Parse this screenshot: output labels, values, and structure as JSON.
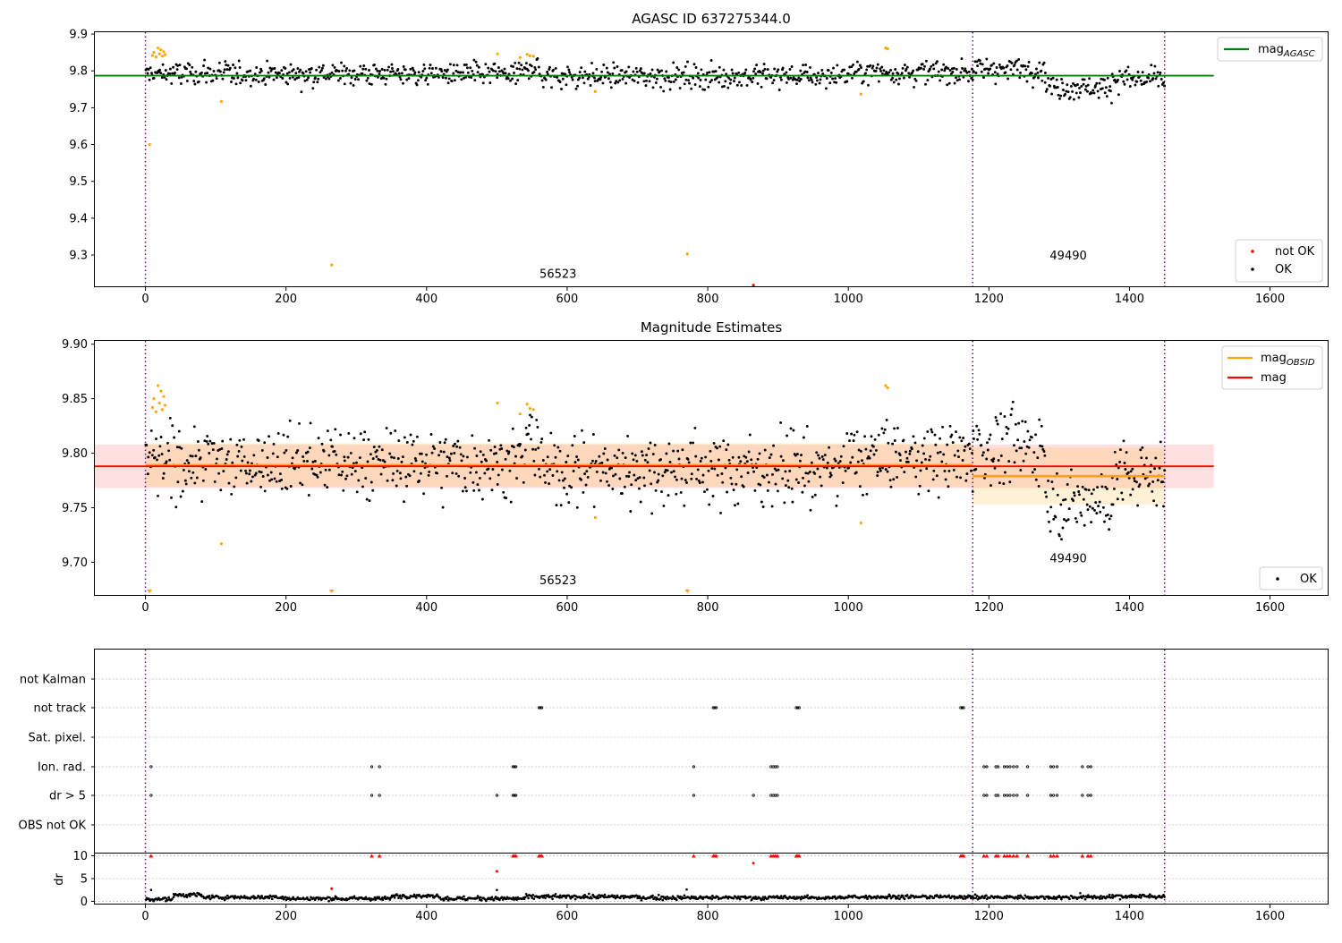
{
  "chart_data": [
    {
      "type": "scatter",
      "title": "AGASC ID 637275344.0",
      "xlim": [
        -72,
        1682
      ],
      "ylim": [
        9.215,
        9.905
      ],
      "xticks": [
        0,
        200,
        400,
        600,
        800,
        1000,
        1200,
        1400,
        1600
      ],
      "yticks": [
        9.3,
        9.4,
        9.5,
        9.6,
        9.7,
        9.8,
        9.9
      ],
      "ytick_labels": [
        "9.3",
        "9.4",
        "9.5",
        "9.6",
        "9.7",
        "9.8",
        "9.9"
      ],
      "obs_boundaries": [
        0,
        1177,
        1450
      ],
      "obs_labels": [
        {
          "text": "56523",
          "x": 587,
          "y": 9.238
        },
        {
          "text": "49490",
          "x": 1313,
          "y": 9.288
        }
      ],
      "mag_agasc": {
        "value": 9.787,
        "x": [
          0,
          1520
        ],
        "color": "#008000"
      },
      "ok_trend": [
        {
          "x0": 0,
          "x1": 540,
          "mean": 9.792
        },
        {
          "x0": 540,
          "x1": 560,
          "mean": 9.812
        },
        {
          "x0": 560,
          "x1": 1000,
          "mean": 9.786
        },
        {
          "x0": 1000,
          "x1": 1177,
          "mean": 9.797
        },
        {
          "x0": 1177,
          "x1": 1280,
          "mean": 9.806
        },
        {
          "x0": 1280,
          "x1": 1375,
          "mean": 9.756
        },
        {
          "x0": 1375,
          "x1": 1450,
          "mean": 9.778
        }
      ],
      "ok_scatter_sd": 0.016,
      "flagged_points": [
        [
          6,
          9.6
        ],
        [
          108,
          9.717
        ],
        [
          265,
          9.273
        ],
        [
          771,
          9.303
        ],
        [
          1018,
          9.737
        ],
        [
          640,
          9.744
        ],
        [
          10,
          9.842
        ],
        [
          12,
          9.85
        ],
        [
          15,
          9.838
        ],
        [
          18,
          9.862
        ],
        [
          20,
          9.846
        ],
        [
          22,
          9.857
        ],
        [
          24,
          9.84
        ],
        [
          26,
          9.852
        ],
        [
          28,
          9.844
        ],
        [
          501,
          9.846
        ],
        [
          533,
          9.836
        ],
        [
          543,
          9.845
        ],
        [
          547,
          9.841
        ],
        [
          552,
          9.84
        ],
        [
          1053,
          9.862
        ],
        [
          1056,
          9.86
        ]
      ],
      "not_ok_points": [
        [
          865,
          9.218
        ]
      ],
      "legend_top": [
        {
          "label": "mag",
          "sub": "AGASC",
          "color": "#008000"
        }
      ],
      "legend_bottom": [
        {
          "label": "not OK",
          "color": "#ff0000"
        },
        {
          "label": "OK",
          "color": "#000000"
        }
      ],
      "colors": {
        "ok": "#000000",
        "flagged": "#ffa500",
        "not_ok": "#ff0000",
        "boundary": "#800080"
      }
    },
    {
      "type": "scatter",
      "title": "Magnitude Estimates",
      "xlim": [
        -72,
        1682
      ],
      "ylim": [
        9.67,
        9.903
      ],
      "xticks": [
        0,
        200,
        400,
        600,
        800,
        1000,
        1200,
        1400,
        1600
      ],
      "yticks": [
        9.7,
        9.75,
        9.8,
        9.85,
        9.9
      ],
      "ytick_labels": [
        "9.70",
        "9.75",
        "9.80",
        "9.85",
        "9.90"
      ],
      "obs_boundaries": [
        0,
        1177,
        1450
      ],
      "obs_labels": [
        {
          "text": "56523",
          "x": 587,
          "y": 9.68
        },
        {
          "text": "49490",
          "x": 1313,
          "y": 9.7
        }
      ],
      "mag": {
        "value": 9.788,
        "band": [
          9.768,
          9.808
        ],
        "x": [
          -72,
          1520
        ],
        "color": "#ff0000"
      },
      "mag_obsid": [
        {
          "x0": 0,
          "x1": 1177,
          "value": 9.789,
          "band": [
            9.769,
            9.809
          ]
        },
        {
          "x0": 1177,
          "x1": 1450,
          "value": 9.779,
          "band": [
            9.753,
            9.805
          ]
        }
      ],
      "ok_trend": [
        {
          "x0": 0,
          "x1": 540,
          "mean": 9.792
        },
        {
          "x0": 540,
          "x1": 560,
          "mean": 9.812
        },
        {
          "x0": 560,
          "x1": 1000,
          "mean": 9.786
        },
        {
          "x0": 1000,
          "x1": 1177,
          "mean": 9.797
        },
        {
          "x0": 1177,
          "x1": 1280,
          "mean": 9.806
        },
        {
          "x0": 1280,
          "x1": 1375,
          "mean": 9.756
        },
        {
          "x0": 1375,
          "x1": 1450,
          "mean": 9.778
        }
      ],
      "ok_scatter_sd": 0.016,
      "flagged_points": [
        [
          108,
          9.717
        ],
        [
          1018,
          9.736
        ],
        [
          640,
          9.741
        ],
        [
          10,
          9.842
        ],
        [
          12,
          9.85
        ],
        [
          15,
          9.838
        ],
        [
          18,
          9.862
        ],
        [
          20,
          9.846
        ],
        [
          22,
          9.857
        ],
        [
          24,
          9.84
        ],
        [
          26,
          9.852
        ],
        [
          28,
          9.844
        ],
        [
          501,
          9.846
        ],
        [
          533,
          9.836
        ],
        [
          543,
          9.845
        ],
        [
          547,
          9.841
        ],
        [
          552,
          9.84
        ],
        [
          1053,
          9.862
        ],
        [
          1056,
          9.86
        ]
      ],
      "offscale_markers_x": [
        6,
        265,
        771
      ],
      "legend_top": [
        {
          "label": "mag",
          "sub": "OBSID",
          "color": "#ffa500"
        },
        {
          "label": "mag",
          "sub": "",
          "color": "#ff0000"
        }
      ],
      "legend_bottom": [
        {
          "label": "OK",
          "color": "#000000"
        }
      ],
      "colors": {
        "ok": "#000000",
        "flagged": "#ffa500",
        "boundary": "#800080"
      }
    },
    {
      "type": "scatter",
      "title": "",
      "xlim": [
        -72,
        1682
      ],
      "xticks": [
        0,
        200,
        400,
        600,
        800,
        1000,
        1200,
        1400,
        1600
      ],
      "obs_boundaries": [
        0,
        1177,
        1450
      ],
      "flag_rows": [
        "not Kalman",
        "not track",
        "Sat. pixel.",
        "Ion. rad.",
        "dr > 5",
        "OBS not OK"
      ],
      "flag_points": {
        "not Kalman": [],
        "not track": [
          560,
          562,
          564,
          808,
          810,
          812,
          926,
          928,
          930,
          1160,
          1162,
          1164
        ],
        "Sat. pixel.": [],
        "Ion. rad.": [
          8,
          322,
          333,
          523,
          525,
          527,
          780,
          890,
          893,
          896,
          899,
          1193,
          1197,
          1210,
          1213,
          1222,
          1226,
          1230,
          1235,
          1240,
          1255,
          1288,
          1292,
          1297,
          1333,
          1341,
          1345
        ],
        "dr > 5": [
          8,
          322,
          333,
          500,
          523,
          525,
          527,
          780,
          865,
          890,
          893,
          896,
          899,
          1193,
          1197,
          1210,
          1213,
          1222,
          1226,
          1230,
          1235,
          1240,
          1255,
          1288,
          1292,
          1297,
          1333,
          1341,
          1345
        ],
        "OBS not OK": []
      },
      "dr": {
        "ylabel": "dr",
        "ylim": [
          -0.5,
          10.5
        ],
        "yticks": [
          0,
          5,
          10
        ],
        "baseline": [
          {
            "x0": 0,
            "x1": 40,
            "mean": 0.5
          },
          {
            "x0": 40,
            "x1": 80,
            "mean": 1.4
          },
          {
            "x0": 80,
            "x1": 200,
            "mean": 0.9
          },
          {
            "x0": 200,
            "x1": 350,
            "mean": 0.6
          },
          {
            "x0": 350,
            "x1": 420,
            "mean": 1.2
          },
          {
            "x0": 420,
            "x1": 540,
            "mean": 0.6
          },
          {
            "x0": 540,
            "x1": 700,
            "mean": 1.0
          },
          {
            "x0": 700,
            "x1": 1000,
            "mean": 0.8
          },
          {
            "x0": 1000,
            "x1": 1177,
            "mean": 1.0
          },
          {
            "x0": 1177,
            "x1": 1375,
            "mean": 0.9
          },
          {
            "x0": 1375,
            "x1": 1450,
            "mean": 1.1
          }
        ],
        "clipped_x": [
          8,
          322,
          333,
          523,
          525,
          527,
          560,
          562,
          564,
          780,
          808,
          810,
          812,
          890,
          893,
          896,
          899,
          926,
          928,
          930,
          1160,
          1162,
          1164,
          1193,
          1197,
          1210,
          1213,
          1222,
          1226,
          1230,
          1235,
          1240,
          1255,
          1288,
          1292,
          1297,
          1333,
          1341,
          1345
        ],
        "high_points": [
          [
            265,
            2.8
          ],
          [
            500,
            6.6
          ],
          [
            865,
            8.4
          ]
        ],
        "black_outliers": [
          [
            500,
            2.5
          ],
          [
            770,
            2.6
          ],
          [
            8,
            2.5
          ],
          [
            1330,
            1.8
          ]
        ]
      },
      "colors": {
        "ok": "#000000",
        "flagged": "#ff0000",
        "boundary": "#800080",
        "grid": "#b0b0b0"
      }
    }
  ]
}
